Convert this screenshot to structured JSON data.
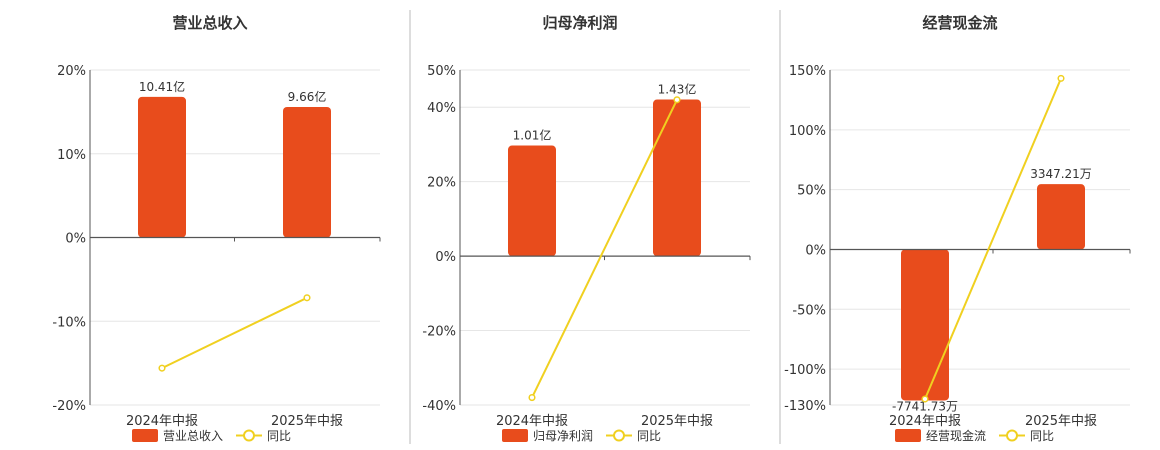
{
  "colors": {
    "bar": "#e84c1c",
    "line": "#f0d020",
    "grid": "#e6e6e6",
    "axis": "#555555",
    "divider": "#bbbbbb"
  },
  "chart_data": [
    {
      "type": "bar",
      "title": "营业总收入",
      "categories": [
        "2024年中报",
        "2025年中报"
      ],
      "ylim": [
        -20,
        20
      ],
      "yticks": [
        20,
        10,
        0,
        -10,
        -20
      ],
      "ytick_labels": [
        "20%",
        "10%",
        "0%",
        "-10%",
        "-20%"
      ],
      "bar_series": {
        "name": "营业总收入",
        "values": [
          10.41,
          9.66
        ],
        "unit": "亿",
        "labels": [
          "10.41亿",
          "9.66亿"
        ],
        "bar_axis_max": 12.4
      },
      "line_series": {
        "name": "同比",
        "values": [
          -15.6,
          -7.2
        ]
      },
      "legend": [
        "营业总收入",
        "同比"
      ]
    },
    {
      "type": "bar",
      "title": "归母净利润",
      "categories": [
        "2024年中报",
        "2025年中报"
      ],
      "ylim": [
        -40,
        50
      ],
      "yticks": [
        50,
        40,
        20,
        0,
        -20,
        -40
      ],
      "ytick_labels": [
        "50%",
        "40%",
        "20%",
        "0%",
        "-20%",
        "-40%"
      ],
      "bar_series": {
        "name": "归母净利润",
        "values": [
          1.01,
          1.43
        ],
        "unit": "亿",
        "labels": [
          "1.01亿",
          "1.43亿"
        ],
        "bar_axis_max": 1.7
      },
      "line_series": {
        "name": "同比",
        "values": [
          -38,
          42
        ]
      },
      "legend": [
        "归母净利润",
        "同比"
      ]
    },
    {
      "type": "bar",
      "title": "经营现金流",
      "categories": [
        "2024年中报",
        "2025年中报"
      ],
      "ylim": [
        -130,
        150
      ],
      "yticks": [
        150,
        100,
        50,
        0,
        -50,
        -100,
        -130
      ],
      "ytick_labels": [
        "150%",
        "100%",
        "50%",
        "0%",
        "-50%",
        "-100%",
        "-130%"
      ],
      "bar_series": {
        "name": "经营现金流",
        "values": [
          -7741.73,
          3347.21
        ],
        "unit": "万",
        "labels": [
          "-7741.73万",
          "3347.21万"
        ],
        "bar_axis_max": 9200
      },
      "line_series": {
        "name": "同比",
        "values": [
          -125,
          143
        ]
      },
      "legend": [
        "经营现金流",
        "同比"
      ]
    }
  ]
}
